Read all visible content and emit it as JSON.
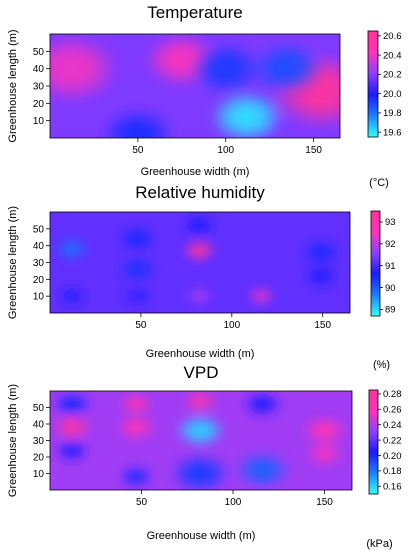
{
  "colors": {
    "scale": [
      "#33ffff",
      "#1a7fff",
      "#1a1aff",
      "#8f3fff",
      "#ff33bb",
      "#ff3399"
    ],
    "axis": "#000000"
  },
  "chart_data": [
    {
      "id": "temperature",
      "type": "heatmap",
      "title": "Temperature",
      "xlabel": "Greenhouse width (m)",
      "ylabel": "Greenhouse length (m)",
      "xlim": [
        0,
        165
      ],
      "ylim": [
        0,
        60
      ],
      "xticks": [
        50,
        100,
        150
      ],
      "yticks": [
        10,
        20,
        30,
        40,
        50
      ],
      "colorbar": {
        "range": [
          19.55,
          20.65
        ],
        "ticks": [
          19.6,
          19.8,
          20.0,
          20.2,
          20.4,
          20.6
        ],
        "unit": "(°C)"
      },
      "background": 20.18,
      "hotspots": [
        {
          "x": 12,
          "y": 40,
          "value": 20.4,
          "radius": 18
        },
        {
          "x": 75,
          "y": 45,
          "value": 20.42,
          "radius": 14
        },
        {
          "x": 155,
          "y": 27,
          "value": 20.62,
          "radius": 20
        },
        {
          "x": 112,
          "y": 12,
          "value": 19.6,
          "radius": 14
        },
        {
          "x": 100,
          "y": 40,
          "value": 19.92,
          "radius": 14
        },
        {
          "x": 135,
          "y": 40,
          "value": 19.88,
          "radius": 14
        },
        {
          "x": 50,
          "y": 2,
          "value": 19.95,
          "radius": 14
        }
      ]
    },
    {
      "id": "relative-humidity",
      "type": "heatmap",
      "title": "Relative humidity",
      "xlabel": "Greenhouse width (m)",
      "ylabel": "Greenhouse length (m)",
      "xlim": [
        0,
        165
      ],
      "ylim": [
        0,
        60
      ],
      "xticks": [
        50,
        100,
        150
      ],
      "yticks": [
        10,
        20,
        30,
        40,
        50
      ],
      "colorbar": {
        "range": [
          88.7,
          93.5
        ],
        "ticks": [
          89,
          90,
          91,
          92,
          93
        ],
        "unit": "(%)"
      },
      "background": 91.2,
      "hotspots": [
        {
          "x": 12,
          "y": 38,
          "value": 89.8,
          "radius": 6
        },
        {
          "x": 48,
          "y": 44,
          "value": 90.5,
          "radius": 7
        },
        {
          "x": 48,
          "y": 26,
          "value": 90.4,
          "radius": 7
        },
        {
          "x": 48,
          "y": 10,
          "value": 90.8,
          "radius": 6
        },
        {
          "x": 82,
          "y": 52,
          "value": 90.6,
          "radius": 6
        },
        {
          "x": 82,
          "y": 37,
          "value": 93.3,
          "radius": 6
        },
        {
          "x": 82,
          "y": 10,
          "value": 91.8,
          "radius": 5
        },
        {
          "x": 116,
          "y": 10,
          "value": 92.3,
          "radius": 5
        },
        {
          "x": 149,
          "y": 36,
          "value": 90.5,
          "radius": 7
        },
        {
          "x": 149,
          "y": 22,
          "value": 90.6,
          "radius": 6
        },
        {
          "x": 12,
          "y": 10,
          "value": 90.6,
          "radius": 5
        }
      ]
    },
    {
      "id": "vpd",
      "type": "heatmap",
      "title": "VPD",
      "xlabel": "Greenhouse width (m)",
      "ylabel": "Greenhouse length (m)",
      "xlim": [
        0,
        165
      ],
      "ylim": [
        0,
        60
      ],
      "xticks": [
        50,
        100,
        150
      ],
      "yticks": [
        10,
        20,
        30,
        40,
        50
      ],
      "colorbar": {
        "range": [
          0.15,
          0.285
        ],
        "ticks": [
          0.16,
          0.18,
          0.2,
          0.22,
          0.24,
          0.26,
          0.28
        ],
        "unit": "(kPa)"
      },
      "background": 0.235,
      "hotspots": [
        {
          "x": 12,
          "y": 52,
          "value": 0.2,
          "radius": 7
        },
        {
          "x": 12,
          "y": 38,
          "value": 0.275,
          "radius": 7
        },
        {
          "x": 12,
          "y": 24,
          "value": 0.205,
          "radius": 6
        },
        {
          "x": 47,
          "y": 52,
          "value": 0.265,
          "radius": 6
        },
        {
          "x": 47,
          "y": 38,
          "value": 0.26,
          "radius": 7
        },
        {
          "x": 47,
          "y": 8,
          "value": 0.2,
          "radius": 6
        },
        {
          "x": 82,
          "y": 54,
          "value": 0.27,
          "radius": 6
        },
        {
          "x": 82,
          "y": 36,
          "value": 0.16,
          "radius": 9
        },
        {
          "x": 82,
          "y": 10,
          "value": 0.195,
          "radius": 11
        },
        {
          "x": 116,
          "y": 52,
          "value": 0.205,
          "radius": 7
        },
        {
          "x": 116,
          "y": 12,
          "value": 0.185,
          "radius": 10
        },
        {
          "x": 150,
          "y": 36,
          "value": 0.26,
          "radius": 8
        },
        {
          "x": 150,
          "y": 22,
          "value": 0.255,
          "radius": 7
        }
      ]
    }
  ]
}
